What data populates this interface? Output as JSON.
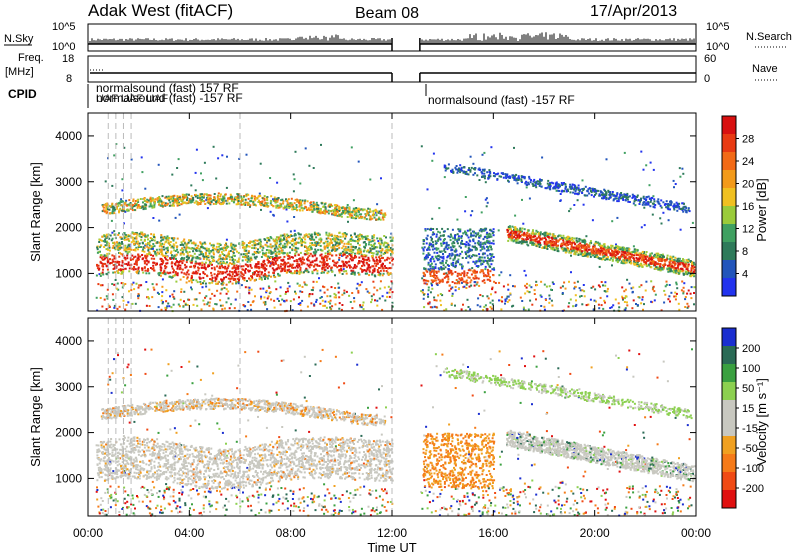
{
  "header": {
    "title": "Adak West (fitACF)",
    "beam": "Beam 08",
    "date": "17/Apr/2013"
  },
  "top_panels": {
    "nsky_label": "N.Sky",
    "nsky_ticks": [
      "10^5",
      "10^0"
    ],
    "nsearch_label": "N.Search",
    "freq_label_1": "Freq.",
    "freq_label_2": "[MHz]",
    "freq_ticks": [
      "18",
      "8"
    ],
    "nave_label": "Nave",
    "nave_ticks": [
      "60",
      "0"
    ],
    "cpid_label": "CPID",
    "cpid_left_text": "normalsound (fast) 157 RF",
    "cpid_left_text2": "normalsound (fast) -157 RF",
    "cpid_right_text": "normalsound (fast) -157 RF",
    "cpid_left_overlap": "UAF UAF UAF"
  },
  "colors": {
    "power_scale": [
      "#2233ee",
      "#2255bb",
      "#2e7a5a",
      "#3fa061",
      "#9acb3a",
      "#f0c020",
      "#f39a1a",
      "#f26a16",
      "#e83a12",
      "#d81010"
    ],
    "velocity_scale": [
      "#1a2ed0",
      "#2a6a55",
      "#3aa040",
      "#8cd050",
      "#c8c8c0",
      "#c8c8c0",
      "#f0a020",
      "#f57a18",
      "#f04a14",
      "#e01010"
    ],
    "gray_echo": "#c8c8c0"
  },
  "chart_data": [
    {
      "type": "heatmap",
      "panel": "power",
      "ylabel": "Slant Range [km]",
      "ylim": [
        180,
        4500
      ],
      "yticks": [
        "1000",
        "2000",
        "3000",
        "4000"
      ],
      "xlim": [
        0,
        24
      ],
      "colorbar_label": "Power [dB]",
      "colorbar_ticks": [
        "28",
        "24",
        "20",
        "16",
        "12",
        "8",
        "4"
      ],
      "data_gap_hours": [
        12.0,
        13.1
      ],
      "features": [
        {
          "name": "main band",
          "range_km_start": 1200,
          "range_km_end": 1400,
          "peak_db": 28,
          "from_hour": 0.3,
          "to_hour": 12.0
        },
        {
          "name": "upper arc",
          "range_km_start": 2400,
          "range_km_peak": 2650,
          "peak_db": 18,
          "from_hour": 0.3,
          "to_hour": 11.6
        },
        {
          "name": "evening band",
          "range_km_start": 1800,
          "range_km_end": 1100,
          "peak_db": 28,
          "from_hour": 16.5,
          "to_hour": 24.0
        },
        {
          "name": "descending arc",
          "range_km_start": 3300,
          "range_km_end": 2400,
          "peak_db": 10,
          "from_hour": 13.8,
          "to_hour": 24.0
        }
      ]
    },
    {
      "type": "heatmap",
      "panel": "velocity",
      "ylabel": "Slant Range [km]",
      "ylim": [
        180,
        4500
      ],
      "yticks": [
        "1000",
        "2000",
        "3000",
        "4000"
      ],
      "xlim": [
        0,
        24
      ],
      "xticks": [
        "00:00",
        "04:00",
        "08:00",
        "12:00",
        "16:00",
        "20:00",
        "00:00"
      ],
      "xlabel": "Time UT",
      "colorbar_label": "Velocity [m s⁻¹]",
      "colorbar_ticks": [
        "200",
        "100",
        "50",
        "15",
        "-15",
        "-50",
        "-100",
        "-200"
      ],
      "data_gap_hours": [
        12.0,
        13.1
      ],
      "features": [
        {
          "name": "ground scatter band",
          "velocity": 0,
          "from_hour": 0.3,
          "to_hour": 12.0
        },
        {
          "name": "negative patch",
          "velocity": -80,
          "range_km_start": 800,
          "range_km_end": 2000,
          "from_hour": 13.1,
          "to_hour": 16.0
        },
        {
          "name": "evening band",
          "velocity": 0,
          "from_hour": 16.5,
          "to_hour": 24.0
        }
      ]
    }
  ]
}
